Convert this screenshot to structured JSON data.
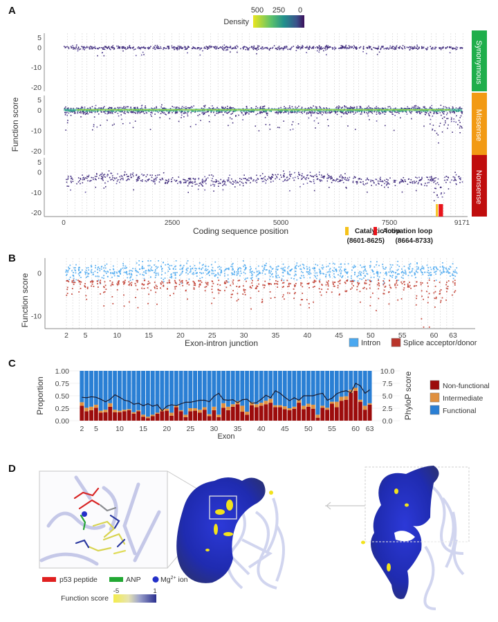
{
  "figure": {
    "panels": [
      "A",
      "B",
      "C",
      "D"
    ]
  },
  "chart_data": [
    {
      "panel": "A",
      "type": "scatter",
      "xlabel": "Coding sequence position",
      "ylabel": "Function score",
      "x_ticks": [
        "0",
        "2500",
        "5000",
        "7500",
        "9171"
      ],
      "x_tick_values": [
        0,
        2500,
        5000,
        7500,
        9171
      ],
      "xlim": [
        0,
        9171
      ],
      "y_ticks": [
        "5",
        "0",
        "-10",
        "-20"
      ],
      "y_tick_values": [
        5,
        0,
        -10,
        -20
      ],
      "ylim": [
        -22,
        7
      ],
      "grid": "vertical dashed (exon boundaries)",
      "facets": [
        {
          "label": "Synonymous",
          "color": "#1fae4b",
          "center": 0.0,
          "spread": 0.8,
          "tail": -8,
          "density_band": false
        },
        {
          "label": "Missense",
          "color": "#f29a14",
          "center": 0.0,
          "spread": 1.5,
          "tail": -20,
          "density_band": true
        },
        {
          "label": "Nonsense",
          "color": "#c00d0d",
          "center": -3.5,
          "spread": 1.2,
          "tail": -17,
          "density_band": false
        }
      ],
      "colorbar": {
        "label": "Density",
        "ticks": [
          "500",
          "250",
          "0"
        ],
        "colors": [
          "#e9e51f",
          "#2fa68a",
          "#3a5a8c",
          "#3b0f59"
        ]
      },
      "annotations": [
        {
          "label": "Catalytic loop",
          "range": "(8601-8625)",
          "start": 8601,
          "end": 8625,
          "color": "#f5c21a"
        },
        {
          "label": "Activation loop",
          "range": "(8664-8733)",
          "start": 8664,
          "end": 8733,
          "color": "#e8141c"
        }
      ]
    },
    {
      "panel": "B",
      "type": "scatter",
      "xlabel": "Exon-intron junction",
      "ylabel": "Function score",
      "x_ticks": [
        "2",
        "5",
        "10",
        "15",
        "20",
        "25",
        "30",
        "35",
        "40",
        "45",
        "50",
        "55",
        "60",
        "63"
      ],
      "x_tick_values": [
        2,
        5,
        10,
        15,
        20,
        25,
        30,
        35,
        40,
        45,
        50,
        55,
        60,
        63
      ],
      "xlim": [
        2,
        63
      ],
      "y_ticks": [
        "0",
        "-10"
      ],
      "y_tick_values": [
        0,
        -10
      ],
      "ylim": [
        -13,
        3.5
      ],
      "legend": [
        {
          "label": "Intron",
          "color": "#4aa8f0"
        },
        {
          "label": "Splice acceptor/donor",
          "color": "#b9342a"
        }
      ],
      "legend_position": "bottom-right"
    },
    {
      "panel": "C",
      "type": "bar",
      "stacked": true,
      "xlabel": "Exon",
      "ylabel": "Proportion",
      "y2label": "PhyloP score",
      "x_ticks": [
        "2",
        "5",
        "10",
        "15",
        "20",
        "25",
        "30",
        "35",
        "40",
        "45",
        "50",
        "55",
        "60",
        "63"
      ],
      "y_ticks": [
        "0.00",
        "0.25",
        "0.50",
        "0.75",
        "1.00"
      ],
      "y2_ticks": [
        "0.0",
        "2.5",
        "5.0",
        "7.5",
        "10.0"
      ],
      "ylim": [
        0,
        1
      ],
      "y2lim": [
        0,
        10
      ],
      "categories": [
        2,
        3,
        4,
        5,
        6,
        7,
        8,
        9,
        10,
        11,
        12,
        13,
        14,
        15,
        16,
        17,
        18,
        19,
        20,
        21,
        22,
        23,
        24,
        25,
        26,
        27,
        28,
        29,
        30,
        31,
        32,
        33,
        34,
        35,
        36,
        37,
        38,
        39,
        40,
        41,
        42,
        43,
        44,
        45,
        46,
        47,
        48,
        49,
        50,
        51,
        52,
        53,
        54,
        55,
        56,
        57,
        58,
        59,
        60,
        61,
        62,
        63
      ],
      "series": [
        {
          "name": "Non-functional",
          "color": "#9c0c0c",
          "values": [
            0.3,
            0.19,
            0.21,
            0.26,
            0.16,
            0.17,
            0.28,
            0.17,
            0.17,
            0.19,
            0.21,
            0.14,
            0.19,
            0.08,
            0.05,
            0.09,
            0.14,
            0.19,
            0.2,
            0.1,
            0.27,
            0.19,
            0.07,
            0.19,
            0.2,
            0.16,
            0.22,
            0.09,
            0.21,
            0.07,
            0.26,
            0.21,
            0.28,
            0.33,
            0.18,
            0.12,
            0.31,
            0.27,
            0.3,
            0.33,
            0.36,
            0.27,
            0.27,
            0.23,
            0.21,
            0.24,
            0.36,
            0.23,
            0.28,
            0.24,
            0.06,
            0.26,
            0.22,
            0.34,
            0.27,
            0.4,
            0.42,
            0.56,
            0.6,
            0.38,
            0.22,
            0.32
          ]
        },
        {
          "name": "Intermediate",
          "color": "#e0903f",
          "values": [
            0.07,
            0.07,
            0.07,
            0.06,
            0.04,
            0.05,
            0.07,
            0.05,
            0.03,
            0.03,
            0.02,
            0.03,
            0.02,
            0.04,
            0.03,
            0.03,
            0.02,
            0.04,
            0.04,
            0.06,
            0.03,
            0.02,
            0.05,
            0.06,
            0.05,
            0.06,
            0.05,
            0.04,
            0.07,
            0.05,
            0.09,
            0.07,
            0.05,
            0.06,
            0.12,
            0.06,
            0.06,
            0.06,
            0.06,
            0.07,
            0.08,
            0.04,
            0.04,
            0.06,
            0.04,
            0.04,
            0.05,
            0.07,
            0.06,
            0.08,
            0.06,
            0.04,
            0.04,
            0.04,
            0.11,
            0.08,
            0.07,
            0.06,
            0.06,
            0.04,
            0.08,
            0.03
          ]
        },
        {
          "name": "Functional",
          "color": "#2a7fd4",
          "values": [
            0.63,
            0.74,
            0.72,
            0.68,
            0.8,
            0.78,
            0.65,
            0.78,
            0.8,
            0.78,
            0.77,
            0.83,
            0.79,
            0.88,
            0.92,
            0.88,
            0.84,
            0.77,
            0.76,
            0.84,
            0.7,
            0.79,
            0.88,
            0.75,
            0.75,
            0.78,
            0.73,
            0.87,
            0.72,
            0.88,
            0.65,
            0.72,
            0.67,
            0.61,
            0.7,
            0.82,
            0.63,
            0.67,
            0.64,
            0.6,
            0.56,
            0.69,
            0.69,
            0.71,
            0.75,
            0.72,
            0.59,
            0.7,
            0.66,
            0.68,
            0.88,
            0.7,
            0.74,
            0.62,
            0.62,
            0.52,
            0.51,
            0.38,
            0.34,
            0.58,
            0.7,
            0.65
          ]
        }
      ],
      "line": {
        "name": "PhyloP score",
        "color": "#1a1a2e",
        "values": [
          4.7,
          4.6,
          4.8,
          4.7,
          4.3,
          3.8,
          4.3,
          5.2,
          4.7,
          4.1,
          3.9,
          3.3,
          3.5,
          3.0,
          3.4,
          2.9,
          3.2,
          2.0,
          2.9,
          3.2,
          3.0,
          3.4,
          3.7,
          3.7,
          3.9,
          4.1,
          4.1,
          3.8,
          4.9,
          5.5,
          4.2,
          4.1,
          4.2,
          3.6,
          4.2,
          4.3,
          3.5,
          3.6,
          4.3,
          5.1,
          4.6,
          6.0,
          5.5,
          4.7,
          4.0,
          4.6,
          4.1,
          5.0,
          5.0,
          5.0,
          5.3,
          5.5,
          4.1,
          4.5,
          5.4,
          5.8,
          6.0,
          5.6,
          7.5,
          7.0,
          5.5,
          6.2
        ]
      },
      "legend_position": "right"
    }
  ],
  "panel_d": {
    "legend": [
      {
        "label": "p53 peptide",
        "color": "#e02020",
        "shape": "bar"
      },
      {
        "label": "ANP",
        "color": "#22a833",
        "shape": "bar"
      },
      {
        "label": "Mg",
        "sup": "2+",
        "suffix": " ion",
        "color": "#2330c8",
        "shape": "dot"
      }
    ],
    "colorbar": {
      "label": "Function score",
      "min_label": "-5",
      "max_label": "1",
      "colors": [
        "#f4ec4a",
        "#d8d8c8",
        "#6f78b8",
        "#2a2f8f"
      ]
    }
  }
}
